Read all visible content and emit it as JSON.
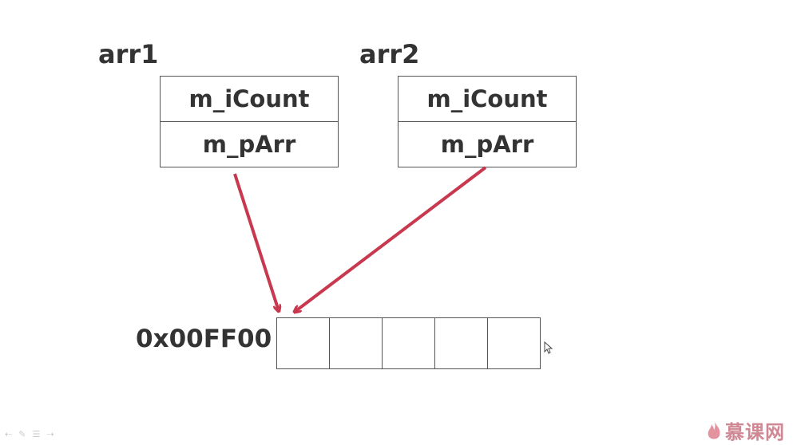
{
  "arr1": {
    "name": "arr1",
    "field1": "m_iCount",
    "field2": "m_pArr"
  },
  "arr2": {
    "name": "arr2",
    "field1": "m_iCount",
    "field2": "m_pArr"
  },
  "memory": {
    "address": "0x00FF00",
    "slots": 5
  },
  "arrow_color": "#c8384e",
  "watermark": "慕课网",
  "nav_icons": [
    "back-icon",
    "pen-icon",
    "menu-icon",
    "forward-icon"
  ]
}
